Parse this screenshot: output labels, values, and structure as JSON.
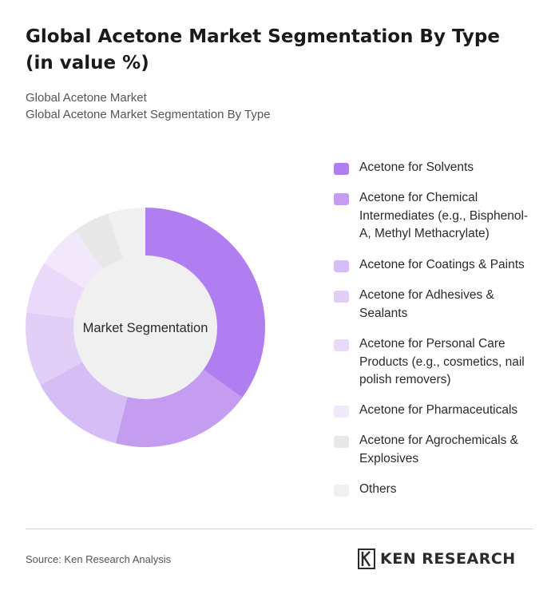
{
  "title": "Global Acetone Market Segmentation By Type (in value %)",
  "subtitle_1": "Global Acetone Market",
  "subtitle_2": "Global Acetone Market Segmentation By Type",
  "center_label": "Market Segmentation",
  "source": "Source: Ken Research Analysis",
  "brand": "KEN RESEARCH",
  "chart_data": {
    "type": "pie",
    "donut": true,
    "categories": [
      "Acetone for Solvents",
      "Acetone for Chemical Intermediates (e.g., Bisphenol-A, Methyl Methacrylate)",
      "Acetone for Coatings & Paints",
      "Acetone for Adhesives & Sealants",
      "Acetone for Personal Care Products (e.g., cosmetics, nail polish removers)",
      "Acetone for Pharmaceuticals",
      "Acetone for Agrochemicals & Explosives",
      "Others"
    ],
    "values": [
      35,
      19,
      13,
      10,
      7,
      6,
      5,
      5
    ],
    "colors": [
      "#b07ef0",
      "#c49cf0",
      "#d7bdf5",
      "#e2cff7",
      "#ead9f8",
      "#f1e8fb",
      "#e8e8e8",
      "#f0f0f0"
    ],
    "legend_position": "right",
    "center_color": "#f0f0f0",
    "start_angle_deg": 0,
    "direction": "clockwise"
  }
}
